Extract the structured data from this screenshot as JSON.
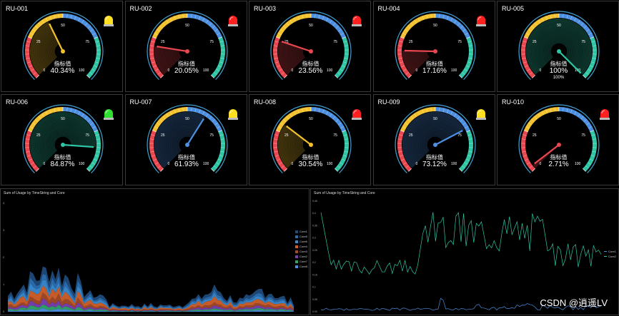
{
  "gauges": [
    {
      "id": "RU-001",
      "label": "指标值",
      "value_text": "40.34%",
      "value": 40.34,
      "lamp": "yellow"
    },
    {
      "id": "RU-002",
      "label": "指标值",
      "value_text": "20.05%",
      "value": 20.05,
      "lamp": "red"
    },
    {
      "id": "RU-003",
      "label": "指标值",
      "value_text": "23.56%",
      "value": 23.56,
      "lamp": "red"
    },
    {
      "id": "RU-004",
      "label": "指标值",
      "value_text": "17.16%",
      "value": 17.16,
      "lamp": "red"
    },
    {
      "id": "RU-005",
      "label": "指标值",
      "value_text": "100%",
      "value": 100,
      "lamp": "none",
      "sub": "100%"
    },
    {
      "id": "RU-006",
      "label": "指标值",
      "value_text": "84.87%",
      "value": 84.87,
      "lamp": "green"
    },
    {
      "id": "RU-007",
      "label": "指标值",
      "value_text": "61.93%",
      "value": 61.93,
      "lamp": "yellow"
    },
    {
      "id": "RU-008",
      "label": "指标值",
      "value_text": "30.54%",
      "value": 30.54,
      "lamp": "red"
    },
    {
      "id": "RU-009",
      "label": "指标值",
      "value_text": "73.12%",
      "value": 73.12,
      "lamp": "yellow"
    },
    {
      "id": "RU-010",
      "label": "指标值",
      "value_text": "2.71%",
      "value": 2.71,
      "lamp": "red"
    }
  ],
  "scale_labels": [
    "0",
    "25",
    "50",
    "75",
    "100"
  ],
  "colors": {
    "red": "#e8474f",
    "yellow": "#f2c12e",
    "blue": "#4d8fe0",
    "teal": "#2fc5a4",
    "needle": "#f06a6a"
  },
  "area_chart": {
    "title": "Sum of Usage by TimeString and Core",
    "yticks": [
      "4",
      "3",
      "2",
      "1",
      "0"
    ],
    "legend": [
      "Core1",
      "Core5",
      "Core6",
      "Core4",
      "Core3",
      "Core2",
      "Core7",
      "Core8"
    ],
    "legend_colors": [
      "#1f4a7a",
      "#2a6fb2",
      "#3a8ad0",
      "#d0602a",
      "#a44a2a",
      "#7a3fb2",
      "#2fa46a",
      "#4d8fe0"
    ]
  },
  "line_chart": {
    "title": "Sum of Usage by TimeString and Core",
    "yticks": [
      "0.45",
      "0.4",
      "0.35",
      "0.3",
      "0.25",
      "0.2",
      "0.15",
      "0.1",
      "0.05",
      "0.00"
    ],
    "legend": [
      "Core1",
      "Core2"
    ],
    "legend_colors": [
      "#4d8fe0",
      "#2fc5a4"
    ]
  },
  "watermark": "CSDN @逍遥LV"
}
